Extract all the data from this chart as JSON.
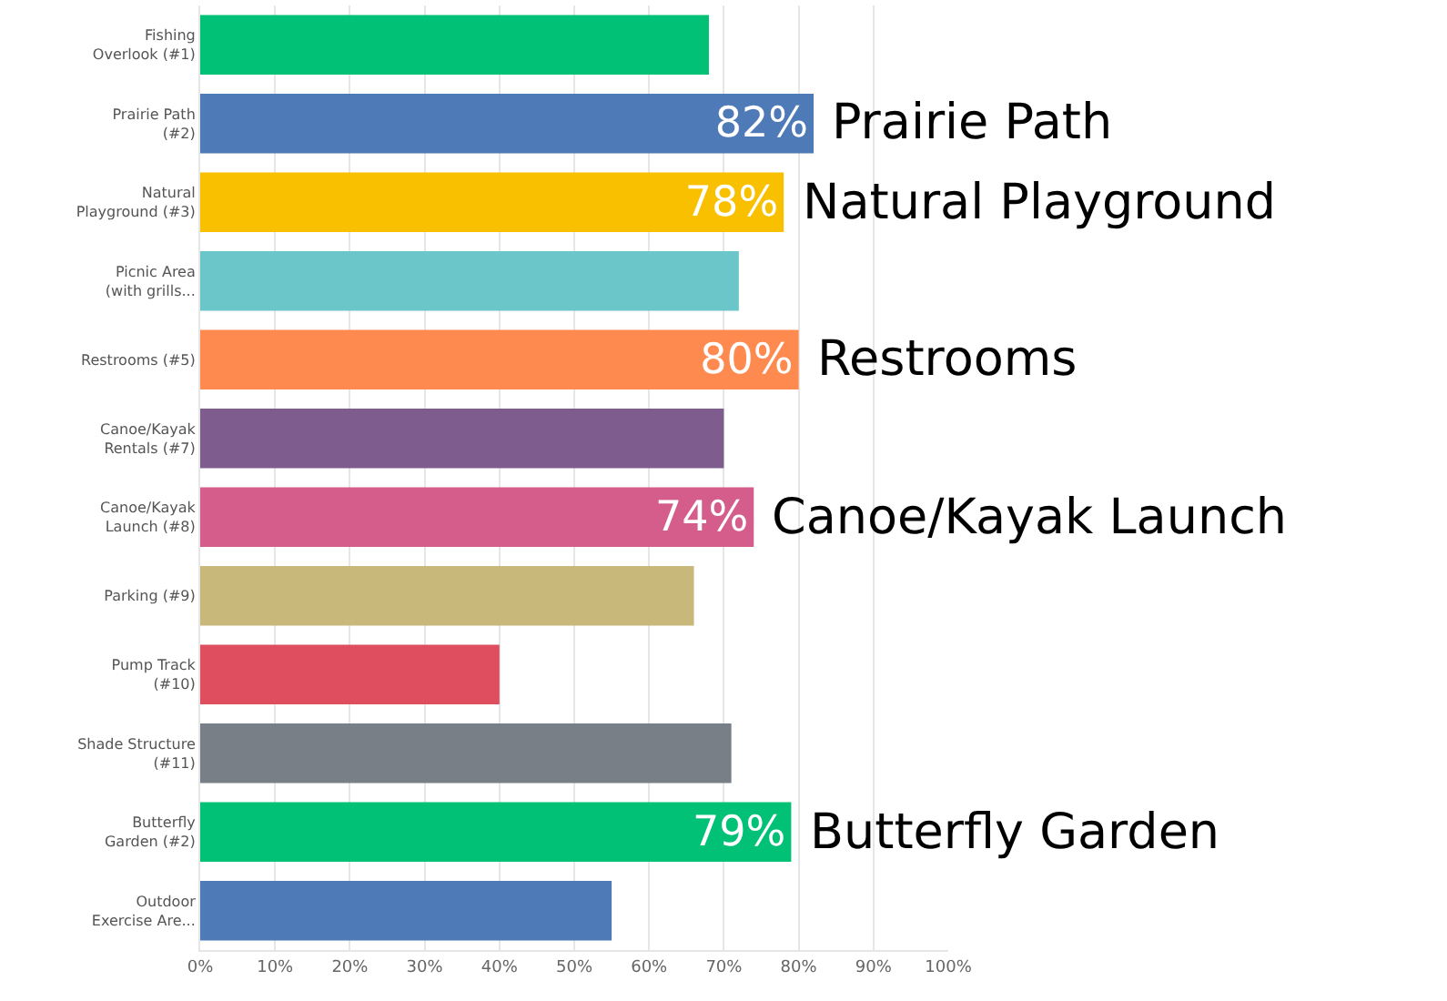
{
  "chart_data": {
    "type": "bar",
    "orientation": "horizontal",
    "categories": [
      "Fishing Overlook (#1)",
      "Prairie Path (#2)",
      "Natural Playground (#3)",
      "Picnic Area (with grills...",
      "Restrooms (#5)",
      "Canoe/Kayak Rentals (#7)",
      "Canoe/Kayak Launch (#8)",
      "Parking (#9)",
      "Pump Track (#10)",
      "Shade Structure (#11)",
      "Butterfly Garden (#2)",
      "Outdoor Exercise Are..."
    ],
    "values": [
      68,
      82,
      78,
      72,
      80,
      70,
      74,
      66,
      40,
      71,
      79,
      55
    ],
    "colors": [
      "#00c176",
      "#4f7ab8",
      "#f9c000",
      "#6ac6c9",
      "#ff8a50",
      "#7e5c8d",
      "#d45d8c",
      "#c8b87a",
      "#de4e5e",
      "#787f86",
      "#00c176",
      "#4f7ab8"
    ],
    "value_labels": [
      null,
      "82%",
      "78%",
      null,
      "80%",
      null,
      "74%",
      null,
      null,
      null,
      "79%",
      null
    ],
    "annotations": [
      {
        "text": "Prairie Path",
        "x": 82,
        "y": "Prairie Path (#2)"
      },
      {
        "text": "Natural Playground",
        "x": 78,
        "y": "Natural Playground (#3)"
      },
      {
        "text": "Restrooms",
        "x": 80,
        "y": "Restrooms (#5)"
      },
      {
        "text": "Canoe/Kayak Launch",
        "x": 74,
        "y": "Canoe/Kayak Launch (#8)"
      },
      {
        "text": "Butterfly Garden",
        "x": 79,
        "y": "Butterfly Garden (#2)"
      }
    ],
    "xlim": [
      0,
      100
    ],
    "xticks": [
      {
        "value": 0,
        "label": "0%"
      },
      {
        "value": 10,
        "label": "10%"
      },
      {
        "value": 20,
        "label": "20%"
      },
      {
        "value": 30,
        "label": "30%"
      },
      {
        "value": 40,
        "label": "40%"
      },
      {
        "value": 50,
        "label": "50%"
      },
      {
        "value": 60,
        "label": "60%"
      },
      {
        "value": 70,
        "label": "70%"
      },
      {
        "value": 80,
        "label": "80%"
      },
      {
        "value": 90,
        "label": "90%"
      },
      {
        "value": 100,
        "label": "100%"
      }
    ],
    "grid": "x"
  }
}
